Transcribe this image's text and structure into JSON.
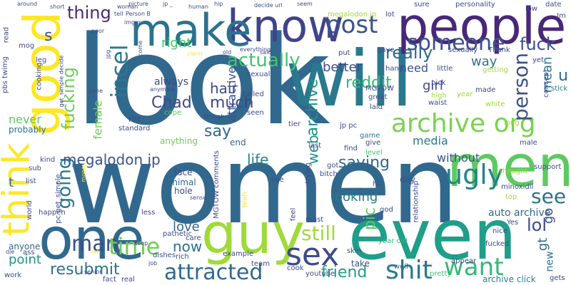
{
  "words": [
    {
      "text": "look",
      "color": "#31688e",
      "vertical": false
    },
    {
      "text": "women",
      "color": "#31688e",
      "vertical": false
    },
    {
      "text": "will",
      "color": "#2a788e",
      "vertical": false
    },
    {
      "text": "people",
      "color": "#482878",
      "vertical": false
    },
    {
      "text": "know",
      "color": "#414487",
      "vertical": false
    },
    {
      "text": "make",
      "color": "#2c728e",
      "vertical": false
    },
    {
      "text": "good",
      "color": "#fde725",
      "vertical": true
    },
    {
      "text": "think",
      "color": "#fde725",
      "vertical": true
    },
    {
      "text": "one",
      "color": "#31688e",
      "vertical": false
    },
    {
      "text": "guy",
      "color": "#a0da39",
      "vertical": false
    },
    {
      "text": "even",
      "color": "#1f9e89",
      "vertical": false
    },
    {
      "text": "men",
      "color": "#5ec962",
      "vertical": false
    },
    {
      "text": "sex",
      "color": "#3e4a89",
      "vertical": false
    },
    {
      "text": "archive org",
      "color": "#7ad151",
      "vertical": false
    },
    {
      "text": "post",
      "color": "#3b528b",
      "vertical": false
    },
    {
      "text": "actually",
      "color": "#46c06f",
      "vertical": false
    },
    {
      "text": "fuck",
      "color": "#3b528b",
      "vertical": false
    },
    {
      "text": "someone",
      "color": "#3b528b",
      "vertical": false
    },
    {
      "text": "really",
      "color": "#31688e",
      "vertical": false
    },
    {
      "text": "incel",
      "color": "#2a788e",
      "vertical": true
    },
    {
      "text": "fucking",
      "color": "#6ece58",
      "vertical": true
    },
    {
      "text": "going",
      "color": "#2a788e",
      "vertical": true
    },
    {
      "text": "thing",
      "color": "#482878",
      "vertical": false
    },
    {
      "text": "right",
      "color": "#46c06f",
      "vertical": false
    },
    {
      "text": "person",
      "color": "#3b528b",
      "vertical": true
    },
    {
      "text": "see",
      "color": "#2c728e",
      "vertical": false
    },
    {
      "text": "ugly",
      "color": "#26828e",
      "vertical": false
    },
    {
      "text": "want",
      "color": "#35b779",
      "vertical": false
    },
    {
      "text": "shit",
      "color": "#2a788e",
      "vertical": false
    },
    {
      "text": "man",
      "color": "#3b528b",
      "vertical": false
    },
    {
      "text": "time",
      "color": "#6ece58",
      "vertical": false
    },
    {
      "text": "attracted",
      "color": "#31688e",
      "vertical": false
    },
    {
      "text": "friend",
      "color": "#1f9e89",
      "vertical": false
    },
    {
      "text": "still",
      "color": "#a0da39",
      "vertical": false
    },
    {
      "text": "lol",
      "color": "#3e4a89",
      "vertical": false
    },
    {
      "text": "Chad",
      "color": "#3e4a89",
      "vertical": false
    },
    {
      "text": "much",
      "color": "#414487",
      "vertical": false
    },
    {
      "text": "say",
      "color": "#31688e",
      "vertical": false
    },
    {
      "text": "hair",
      "color": "#3e4a89",
      "vertical": false
    },
    {
      "text": "megalodon jp",
      "color": "#3b528b",
      "vertical": false
    },
    {
      "text": "life",
      "color": "#26828e",
      "vertical": false
    },
    {
      "text": "saying",
      "color": "#31688e",
      "vertical": false
    },
    {
      "text": "media",
      "color": "#2a788e",
      "vertical": false
    },
    {
      "text": "without",
      "color": "#3b528b",
      "vertical": false
    },
    {
      "text": "reddit",
      "color": "#35b779",
      "vertical": false
    },
    {
      "text": "need",
      "color": "#3b528b",
      "vertical": false
    },
    {
      "text": "girl",
      "color": "#3e4a89",
      "vertical": false
    },
    {
      "text": "way",
      "color": "#2c728e",
      "vertical": false
    },
    {
      "text": "mean",
      "color": "#2a788e",
      "vertical": true
    },
    {
      "text": "better",
      "color": "#3e4a89",
      "vertical": false
    },
    {
      "text": "archive",
      "color": "#21918c",
      "vertical": true
    },
    {
      "text": "web",
      "color": "#21918c",
      "vertical": true
    },
    {
      "text": "pic",
      "color": "#5ec962",
      "vertical": true
    },
    {
      "text": "looking",
      "color": "#2a788e",
      "vertical": false
    },
    {
      "text": "auto archive",
      "color": "#31688e",
      "vertical": false
    },
    {
      "text": "love",
      "color": "#31688e",
      "vertical": false
    },
    {
      "text": "now",
      "color": "#2c728e",
      "vertical": false
    },
    {
      "text": "point",
      "color": "#21918c",
      "vertical": false
    },
    {
      "text": "resubmit",
      "color": "#2c728e",
      "vertical": false
    },
    {
      "text": "never",
      "color": "#5ec962",
      "vertical": false
    },
    {
      "text": "female",
      "color": "#6ece58",
      "vertical": true
    },
    {
      "text": "gt",
      "color": "#31688e",
      "vertical": true
    },
    {
      "text": "new",
      "color": "#2c728e",
      "vertical": true
    },
    {
      "text": "go",
      "color": "#3b528b",
      "vertical": true
    },
    {
      "text": "u",
      "color": "#31688e",
      "vertical": false
    },
    {
      "text": "s",
      "color": "#3b528b",
      "vertical": false
    },
    {
      "text": "t",
      "color": "#31688e",
      "vertical": false
    },
    {
      "text": "always",
      "color": "#3e4a89",
      "vertical": false
    },
    {
      "text": "attractive",
      "color": "#3b528b",
      "vertical": true
    },
    {
      "text": "anything",
      "color": "#6ece58",
      "vertical": false
    },
    {
      "text": "face",
      "color": "#3e4a89",
      "vertical": false
    },
    {
      "text": "animal",
      "color": "#31688e",
      "vertical": false
    },
    {
      "text": "hole",
      "color": "#3e4a89",
      "vertical": false
    },
    {
      "text": "probably",
      "color": "#2c728e",
      "vertical": false
    },
    {
      "text": "anyone",
      "color": "#31688e",
      "vertical": false
    },
    {
      "text": "end",
      "color": "#31688e",
      "vertical": false
    },
    {
      "text": "MGTOW comments",
      "color": "#3e4a89",
      "vertical": true
    },
    {
      "text": "youtube",
      "color": "#3e4a89",
      "vertical": false
    },
    {
      "text": "Yeah",
      "color": "#fde725",
      "vertical": true
    },
    {
      "text": "dishes",
      "color": "#3b528b",
      "vertical": false
    },
    {
      "text": "pretty",
      "color": "#46c06f",
      "vertical": false
    },
    {
      "text": "archive click",
      "color": "#26828e",
      "vertical": false
    },
    {
      "text": "take",
      "color": "#3b528b",
      "vertical": false
    },
    {
      "text": "year old",
      "color": "#35b779",
      "vertical": false
    },
    {
      "text": "relationship",
      "color": "#3e4a89",
      "vertical": true
    },
    {
      "text": "hit",
      "color": "#3b528b",
      "vertical": false
    },
    {
      "text": "day",
      "color": "#3b528b",
      "vertical": false
    },
    {
      "text": "god",
      "color": "#3e4a89",
      "vertical": false
    },
    {
      "text": "well",
      "color": "#31688e",
      "vertical": false
    },
    {
      "text": "got",
      "color": "#3b528b",
      "vertical": false
    },
    {
      "text": "bitch",
      "color": "#3e4a89",
      "vertical": false
    },
    {
      "text": "level",
      "color": "#46c06f",
      "vertical": false
    },
    {
      "text": "game",
      "color": "#2a788e",
      "vertical": false
    },
    {
      "text": "jp pc",
      "color": "#3e4a89",
      "vertical": false
    },
    {
      "text": "tier",
      "color": "#3e4a89",
      "vertical": false
    },
    {
      "text": "seen",
      "color": "#3e4a89",
      "vertical": false
    },
    {
      "text": "sexual",
      "color": "#3e4a89",
      "vertical": false
    },
    {
      "text": "called",
      "color": "#3e4a89",
      "vertical": false
    },
    {
      "text": "cope",
      "color": "#5ec962",
      "vertical": false
    },
    {
      "text": "standard",
      "color": "#3e4a89",
      "vertical": false
    },
    {
      "text": "Pitt",
      "color": "#3e4a89",
      "vertical": false
    },
    {
      "text": "MGTOW",
      "color": "#3e4a89",
      "vertical": false
    },
    {
      "text": "great",
      "color": "#3e4a89",
      "vertical": false
    },
    {
      "text": "laid",
      "color": "#3e4a89",
      "vertical": false
    },
    {
      "text": "pick",
      "color": "#3e4a89",
      "vertical": false
    },
    {
      "text": "high",
      "color": "#a0da39",
      "vertical": false
    },
    {
      "text": "waist",
      "color": "#3e4a89",
      "vertical": false
    },
    {
      "text": "year",
      "color": "#a0da39",
      "vertical": false
    },
    {
      "text": "white",
      "color": "#a0da39",
      "vertical": false
    },
    {
      "text": "made",
      "color": "#3e4a89",
      "vertical": false
    },
    {
      "text": "getting",
      "color": "#a0da39",
      "vertical": false
    },
    {
      "text": "little",
      "color": "#3e4a89",
      "vertical": false
    },
    {
      "text": "hand",
      "color": "#3e4a89",
      "vertical": false
    },
    {
      "text": "sexually",
      "color": "#3e4a89",
      "vertical": false
    },
    {
      "text": "Thank",
      "color": "#3e4a89",
      "vertical": false
    },
    {
      "text": "gave",
      "color": "#3e4a89",
      "vertical": false
    },
    {
      "text": "put",
      "color": "#3e4a89",
      "vertical": false
    },
    {
      "text": "lot",
      "color": "#3e4a89",
      "vertical": false
    },
    {
      "text": "_megalodon jp",
      "color": "#a0da39",
      "vertical": false
    },
    {
      "text": "sure",
      "color": "#3e4a89",
      "vertical": false
    },
    {
      "text": "personality",
      "color": "#3e4a89",
      "vertical": false
    },
    {
      "text": "low",
      "color": "#3e4a89",
      "vertical": false
    },
    {
      "text": "date",
      "color": "#3e4a89",
      "vertical": false
    },
    {
      "text": "Im",
      "color": "#3e4a89",
      "vertical": false
    },
    {
      "text": "yet",
      "color": "#3e4a89",
      "vertical": false
    },
    {
      "text": "stick",
      "color": "#26828e",
      "vertical": false
    },
    {
      "text": "concept",
      "color": "#3e4a89",
      "vertical": true
    },
    {
      "text": "long",
      "color": "#a0da39",
      "vertical": false
    },
    {
      "text": "male",
      "color": "#3e4a89",
      "vertical": false
    },
    {
      "text": "thought",
      "color": "#a0da39",
      "vertical": false
    },
    {
      "text": "support",
      "color": "#3e4a89",
      "vertical": false
    },
    {
      "text": "top",
      "color": "#a0da39",
      "vertical": false
    },
    {
      "text": "Yes",
      "color": "#3e4a89",
      "vertical": false
    },
    {
      "text": "minoxidil",
      "color": "#3e4a89",
      "vertical": false
    },
    {
      "text": "nice",
      "color": "#3e4a89",
      "vertical": false
    },
    {
      "text": "appear",
      "color": "#3e4a89",
      "vertical": false
    },
    {
      "text": "fucked",
      "color": "#3e4a89",
      "vertical": false
    },
    {
      "text": "gets",
      "color": "#3e4a89",
      "vertical": false
    },
    {
      "text": "skin",
      "color": "#3e4a89",
      "vertical": false
    },
    {
      "text": "cook",
      "color": "#3e4a89",
      "vertical": false
    },
    {
      "text": "find",
      "color": "#3e4a89",
      "vertical": false
    },
    {
      "text": "give",
      "color": "#3e4a89",
      "vertical": false
    },
    {
      "text": "last",
      "color": "#3e4a89",
      "vertical": false
    },
    {
      "text": "must",
      "color": "#3e4a89",
      "vertical": false
    },
    {
      "text": "feel",
      "color": "#3e4a89",
      "vertical": true
    },
    {
      "text": "trying",
      "color": "#3e4a89",
      "vertical": true
    },
    {
      "text": "use",
      "color": "#3e4a89",
      "vertical": false
    },
    {
      "text": "team",
      "color": "#3e4a89",
      "vertical": false
    },
    {
      "text": "example",
      "color": "#3e4a89",
      "vertical": false
    },
    {
      "text": "sense",
      "color": "#3e4a89",
      "vertical": false
    },
    {
      "text": "care",
      "color": "#3e4a89",
      "vertical": false
    },
    {
      "text": "rich",
      "color": "#3e4a89",
      "vertical": false
    },
    {
      "text": "keep",
      "color": "#3e4a89",
      "vertical": false
    },
    {
      "text": "pathetic",
      "color": "#3e4a89",
      "vertical": false
    },
    {
      "text": "less",
      "color": "#3e4a89",
      "vertical": false
    },
    {
      "text": "job",
      "color": "#3e4a89",
      "vertical": false
    },
    {
      "text": "real",
      "color": "#3e4a89",
      "vertical": false
    },
    {
      "text": "fact",
      "color": "#3e4a89",
      "vertical": false
    },
    {
      "text": "senior",
      "color": "#3e4a89",
      "vertical": false
    },
    {
      "text": "let",
      "color": "#fde725",
      "vertical": false
    },
    {
      "text": "work",
      "color": "#3e4a89",
      "vertical": false
    },
    {
      "text": "ass",
      "color": "#3e4a89",
      "vertical": false
    },
    {
      "text": "die",
      "color": "#3e4a89",
      "vertical": false
    },
    {
      "text": "happen",
      "color": "#3e4a89",
      "vertical": false
    },
    {
      "text": "pc get_simple",
      "color": "#3e4a89",
      "vertical": true
    },
    {
      "text": "world",
      "color": "#3e4a89",
      "vertical": true
    },
    {
      "text": "list",
      "color": "#3e4a89",
      "vertical": false
    },
    {
      "text": "sub",
      "color": "#3e4a89",
      "vertical": false
    },
    {
      "text": "kind",
      "color": "#3e4a89",
      "vertical": false
    },
    {
      "text": "money",
      "color": "#fde725",
      "vertical": true
    },
    {
      "text": "pbs twimg",
      "color": "#3e4a89",
      "vertical": true
    },
    {
      "text": "read",
      "color": "#3e4a89",
      "vertical": true
    },
    {
      "text": "mog",
      "color": "#3e4a89",
      "vertical": false
    },
    {
      "text": "leg",
      "color": "#3e4a89",
      "vertical": false
    },
    {
      "text": "cooking",
      "color": "#3e4a89",
      "vertical": true
    },
    {
      "text": "get_simple decide",
      "color": "#3e4a89",
      "vertical": true
    },
    {
      "text": "gene",
      "color": "#3e4a89",
      "vertical": false
    },
    {
      "text": "jpg",
      "color": "#3e4a89",
      "vertical": true
    },
    {
      "text": "imgur",
      "color": "#3e4a89",
      "vertical": false
    },
    {
      "text": "poor",
      "color": "#3e4a89",
      "vertical": false
    },
    {
      "text": "short",
      "color": "#3e4a89",
      "vertical": false
    },
    {
      "text": "around",
      "color": "#3e4a89",
      "vertical": false
    },
    {
      "text": "tell",
      "color": "#3e4a89",
      "vertical": false
    },
    {
      "text": "Person B",
      "color": "#3e4a89",
      "vertical": false
    },
    {
      "text": "woman",
      "color": "#3e4a89",
      "vertical": false
    },
    {
      "text": "picture",
      "color": "#3e4a89",
      "vertical": false
    },
    {
      "text": "jp _",
      "color": "#3e4a89",
      "vertical": false
    },
    {
      "text": "human",
      "color": "#3e4a89",
      "vertical": false
    },
    {
      "text": "hip",
      "color": "#3e4a89",
      "vertical": false
    },
    {
      "text": "decide url",
      "color": "#3e4a89",
      "vertical": false
    },
    {
      "text": "seem",
      "color": "#3e4a89",
      "vertical": false
    },
    {
      "text": "claim",
      "color": "#fde725",
      "vertical": false
    },
    {
      "text": "old",
      "color": "#3e4a89",
      "vertical": false
    },
    {
      "text": "everything",
      "color": "#3e4a89",
      "vertical": false
    },
    {
      "text": "said",
      "color": "#3e4a89",
      "vertical": false
    },
    {
      "text": "come",
      "color": "#3e4a89",
      "vertical": true
    },
    {
      "text": "anymore",
      "color": "#3e4a89",
      "vertical": false
    },
    {
      "text": "though",
      "color": "#3e4a89",
      "vertical": false
    }
  ]
}
